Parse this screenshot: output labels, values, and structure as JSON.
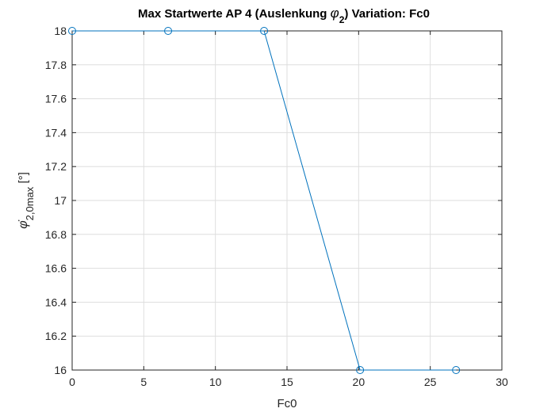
{
  "chart_data": {
    "type": "line",
    "title": "Max Startwerte AP 4 (Auslenkung φ₂)  Variation: Fc0",
    "title_parts": {
      "prefix": "Max Startwerte AP 4 (Auslenkung ",
      "symbol": "φ",
      "subscript": "2",
      "suffix": ")  Variation: Fc0"
    },
    "xlabel": "Fc0",
    "ylabel_parts": {
      "symbol": "φ̇",
      "subscript": "2,0max",
      "unit": " [°]"
    },
    "xlim": [
      0,
      30
    ],
    "ylim": [
      16,
      18
    ],
    "xticks": [
      0,
      5,
      10,
      15,
      20,
      25,
      30
    ],
    "yticks": [
      16,
      16.2,
      16.4,
      16.6,
      16.8,
      17,
      17.2,
      17.4,
      17.6,
      17.8,
      18
    ],
    "xtick_labels": [
      "0",
      "5",
      "10",
      "15",
      "20",
      "25",
      "30"
    ],
    "ytick_labels": [
      "16",
      "16.2",
      "16.4",
      "16.6",
      "16.8",
      "17",
      "17.2",
      "17.4",
      "17.6",
      "17.8",
      "18"
    ],
    "grid": true,
    "series": [
      {
        "x": [
          0,
          6.7,
          13.4,
          20.1,
          26.8
        ],
        "y": [
          18,
          18,
          18,
          16,
          16
        ],
        "color": "#0072BD",
        "marker": "circle"
      }
    ]
  }
}
